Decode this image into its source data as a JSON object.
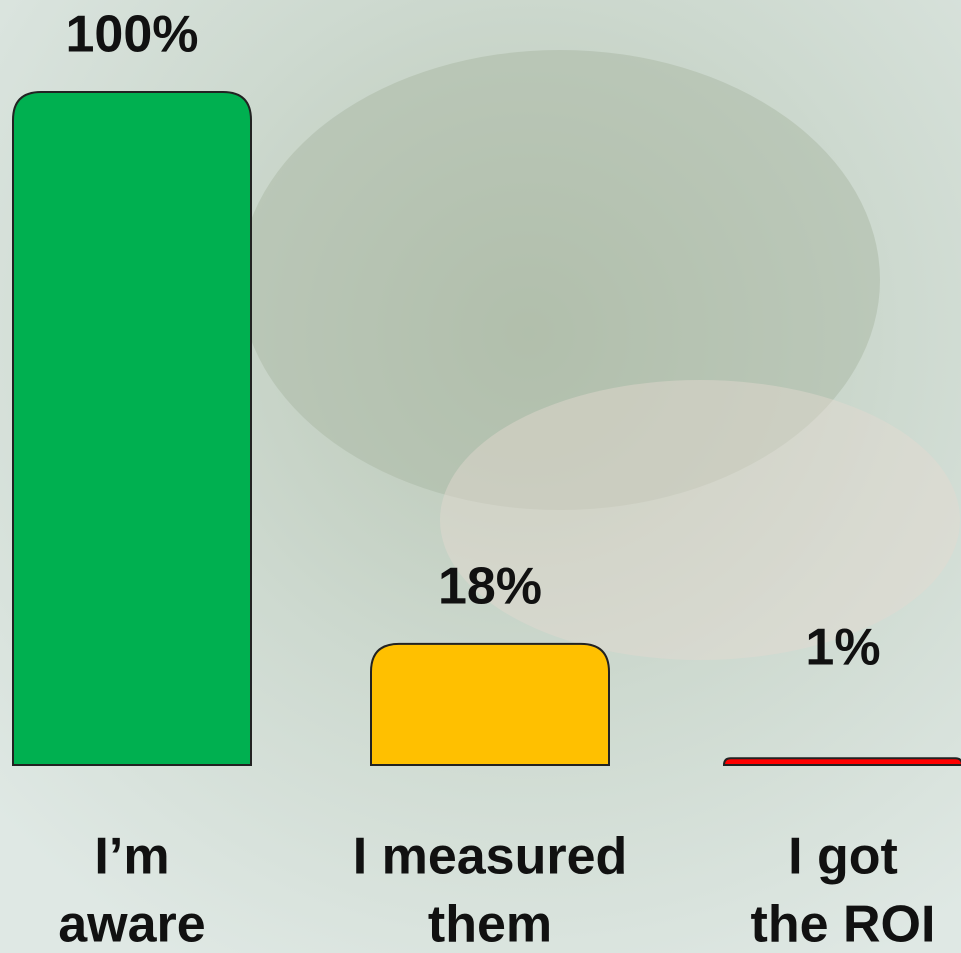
{
  "chart_data": {
    "type": "bar",
    "categories": [
      [
        "I’m",
        "aware"
      ],
      [
        "I measured",
        "them"
      ],
      [
        "I got",
        "the ROI"
      ]
    ],
    "values": [
      100,
      18,
      1
    ],
    "value_labels": [
      "100%",
      "18%",
      "1%"
    ],
    "colors": [
      "#00b050",
      "#ffc000",
      "#ff0000"
    ],
    "ylim": [
      0,
      100
    ]
  }
}
